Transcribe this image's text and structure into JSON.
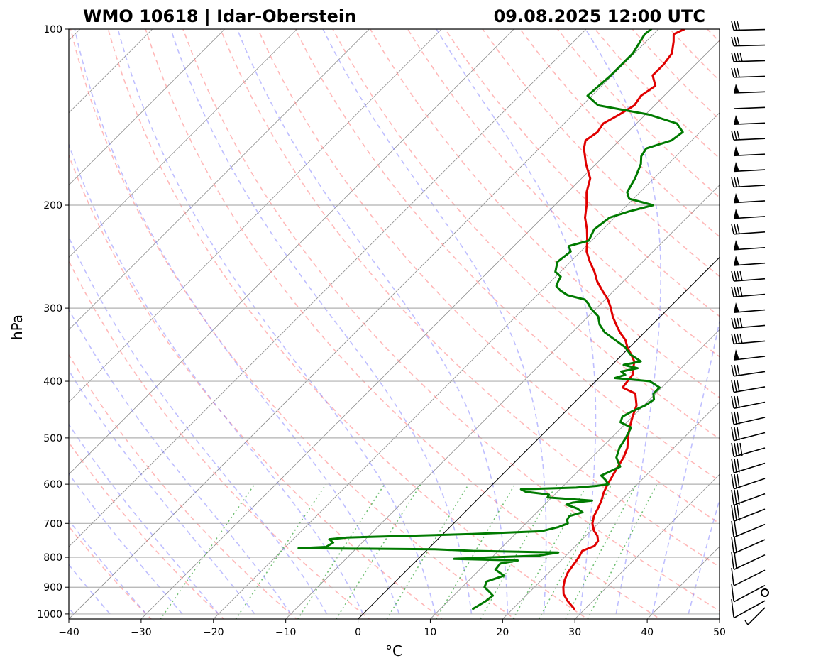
{
  "chart_data": {
    "type": "line",
    "subtype": "skew-t log-p diagram",
    "title_left": "WMO 10618 | Idar-Oberstein",
    "title_right": "09.08.2025 12:00 UTC",
    "xlabel": "°C",
    "ylabel": "hPa",
    "xlim": [
      -40,
      50
    ],
    "ylim": [
      1020,
      100
    ],
    "y_scale": "log",
    "x_ticks": [
      -40,
      -30,
      -20,
      -10,
      0,
      10,
      20,
      30,
      40,
      50
    ],
    "x_tick_labels": [
      "−40",
      "−30",
      "−20",
      "−10",
      "0",
      "10",
      "20",
      "30",
      "40",
      "50"
    ],
    "y_ticks": [
      1000,
      900,
      800,
      700,
      600,
      500,
      400,
      300,
      200,
      100
    ],
    "y_tick_labels": [
      "1000",
      "900",
      "800",
      "700",
      "600",
      "500",
      "400",
      "300",
      "200",
      "100"
    ],
    "grid": "horizontal isobars",
    "skew": "45 degrees",
    "background_lines": {
      "isotherms": {
        "color": "#808080",
        "step_c": 10
      },
      "dry_adiabats": {
        "color": "#ff8080",
        "style": "dashed"
      },
      "moist_adiabats": {
        "color": "#8080ff",
        "style": "dashed"
      },
      "mixing_ratio": {
        "color": "#4caf50",
        "style": "dotted"
      },
      "zero_isotherm": {
        "color": "#000000"
      }
    },
    "series": [
      {
        "key": "temperature",
        "color": "#e00000",
        "points": [
          [
            980,
            28.5
          ],
          [
            950,
            26.5
          ],
          [
            925,
            25.0
          ],
          [
            900,
            24.0
          ],
          [
            875,
            23.2
          ],
          [
            850,
            22.6
          ],
          [
            825,
            22.3
          ],
          [
            800,
            22.0
          ],
          [
            780,
            21.6
          ],
          [
            765,
            22.6
          ],
          [
            750,
            22.4
          ],
          [
            735,
            21.6
          ],
          [
            720,
            20.4
          ],
          [
            700,
            19.2
          ],
          [
            680,
            18.4
          ],
          [
            660,
            17.9
          ],
          [
            640,
            17.3
          ],
          [
            620,
            16.5
          ],
          [
            600,
            15.9
          ],
          [
            580,
            15.4
          ],
          [
            560,
            14.9
          ],
          [
            540,
            14.4
          ],
          [
            520,
            13.6
          ],
          [
            500,
            12.3
          ],
          [
            480,
            11.1
          ],
          [
            460,
            10.0
          ],
          [
            440,
            9.0
          ],
          [
            420,
            7.2
          ],
          [
            410,
            4.6
          ],
          [
            400,
            4.4
          ],
          [
            390,
            4.2
          ],
          [
            380,
            3.4
          ],
          [
            370,
            2.6
          ],
          [
            360,
            1.2
          ],
          [
            350,
            -0.3
          ],
          [
            340,
            -1.6
          ],
          [
            330,
            -3.4
          ],
          [
            320,
            -5.0
          ],
          [
            310,
            -6.6
          ],
          [
            300,
            -8.0
          ],
          [
            290,
            -9.6
          ],
          [
            280,
            -11.6
          ],
          [
            270,
            -13.6
          ],
          [
            260,
            -15.3
          ],
          [
            250,
            -17.3
          ],
          [
            240,
            -19.2
          ],
          [
            230,
            -20.6
          ],
          [
            220,
            -22.2
          ],
          [
            210,
            -24.1
          ],
          [
            200,
            -25.6
          ],
          [
            190,
            -27.4
          ],
          [
            180,
            -28.8
          ],
          [
            170,
            -31.4
          ],
          [
            160,
            -33.8
          ],
          [
            155,
            -34.7
          ],
          [
            150,
            -34.2
          ],
          [
            145,
            -34.6
          ],
          [
            140,
            -33.6
          ],
          [
            135,
            -32.8
          ],
          [
            130,
            -33.2
          ],
          [
            125,
            -32.6
          ],
          [
            120,
            -34.4
          ],
          [
            115,
            -34.4
          ],
          [
            110,
            -34.8
          ],
          [
            105,
            -36.2
          ],
          [
            102,
            -37.2
          ],
          [
            100,
            -36.4
          ]
        ]
      },
      {
        "key": "dewpoint",
        "color": "#007a00",
        "points": [
          [
            980,
            14.5
          ],
          [
            950,
            15.2
          ],
          [
            930,
            15.4
          ],
          [
            915,
            14.3
          ],
          [
            900,
            13.1
          ],
          [
            880,
            12.6
          ],
          [
            860,
            14.2
          ],
          [
            840,
            12.2
          ],
          [
            820,
            12.0
          ],
          [
            810,
            14.0
          ],
          [
            805,
            5.0
          ],
          [
            800,
            9.8
          ],
          [
            795,
            16.2
          ],
          [
            785,
            18.5
          ],
          [
            780,
            6.4
          ],
          [
            775,
            1.0
          ],
          [
            772,
            -18.0
          ],
          [
            768,
            -14.4
          ],
          [
            755,
            -14.0
          ],
          [
            745,
            -15.0
          ],
          [
            740,
            -12.8
          ],
          [
            730,
            4.0
          ],
          [
            722,
            13.2
          ],
          [
            710,
            15.0
          ],
          [
            700,
            15.8
          ],
          [
            690,
            15.2
          ],
          [
            680,
            15.0
          ],
          [
            670,
            16.3
          ],
          [
            660,
            15.0
          ],
          [
            650,
            13.0
          ],
          [
            645,
            13.6
          ],
          [
            640,
            16.0
          ],
          [
            632,
            9.4
          ],
          [
            625,
            9.2
          ],
          [
            618,
            5.6
          ],
          [
            612,
            4.6
          ],
          [
            608,
            12.0
          ],
          [
            604,
            14.6
          ],
          [
            600,
            16.0
          ],
          [
            590,
            15.0
          ],
          [
            580,
            13.8
          ],
          [
            560,
            15.2
          ],
          [
            540,
            13.4
          ],
          [
            520,
            12.5
          ],
          [
            500,
            12.0
          ],
          [
            480,
            11.3
          ],
          [
            470,
            9.1
          ],
          [
            460,
            8.6
          ],
          [
            450,
            9.2
          ],
          [
            440,
            10.2
          ],
          [
            430,
            10.6
          ],
          [
            420,
            9.7
          ],
          [
            410,
            9.7
          ],
          [
            400,
            7.5
          ],
          [
            395,
            2.2
          ],
          [
            390,
            3.2
          ],
          [
            385,
            2.2
          ],
          [
            380,
            4.0
          ],
          [
            375,
            1.6
          ],
          [
            370,
            3.5
          ],
          [
            360,
            1.1
          ],
          [
            350,
            -0.6
          ],
          [
            340,
            -3.0
          ],
          [
            330,
            -5.5
          ],
          [
            320,
            -7.3
          ],
          [
            310,
            -8.6
          ],
          [
            300,
            -10.8
          ],
          [
            295,
            -11.7
          ],
          [
            290,
            -12.8
          ],
          [
            285,
            -15.8
          ],
          [
            280,
            -17.4
          ],
          [
            275,
            -18.6
          ],
          [
            270,
            -19.0
          ],
          [
            265,
            -19.3
          ],
          [
            260,
            -20.7
          ],
          [
            250,
            -21.8
          ],
          [
            240,
            -21.4
          ],
          [
            235,
            -22.4
          ],
          [
            230,
            -20.4
          ],
          [
            220,
            -21.2
          ],
          [
            210,
            -20.7
          ],
          [
            205,
            -18.9
          ],
          [
            200,
            -16.4
          ],
          [
            195,
            -20.6
          ],
          [
            190,
            -21.8
          ],
          [
            180,
            -22.6
          ],
          [
            170,
            -23.8
          ],
          [
            165,
            -24.8
          ],
          [
            160,
            -25.2
          ],
          [
            155,
            -22.8
          ],
          [
            150,
            -22.4
          ],
          [
            145,
            -24.4
          ],
          [
            140,
            -29.5
          ],
          [
            135,
            -37.8
          ],
          [
            130,
            -40.6
          ],
          [
            120,
            -40.2
          ],
          [
            110,
            -40.2
          ],
          [
            102,
            -41.2
          ],
          [
            100,
            -41.0
          ]
        ]
      }
    ],
    "wind_barbs": {
      "side": "right",
      "levels": 38,
      "color": "#000000",
      "calm_marker": "O"
    }
  }
}
